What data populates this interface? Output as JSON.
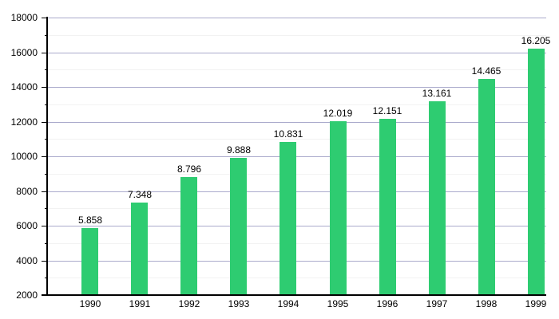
{
  "chart_data": {
    "type": "bar",
    "title": "",
    "xlabel": "",
    "ylabel": "",
    "categories": [
      "1990",
      "1991",
      "1992",
      "1993",
      "1994",
      "1995",
      "1996",
      "1997",
      "1998",
      "1999"
    ],
    "values": [
      5858,
      7348,
      8796,
      9888,
      10831,
      12019,
      12151,
      13161,
      14465,
      16205
    ],
    "value_labels": [
      "5.858",
      "7.348",
      "8.796",
      "9.888",
      "10.831",
      "12.019",
      "12.151",
      "13.161",
      "14.465",
      "16.205"
    ],
    "y_tick_labels": [
      "2000",
      "4000",
      "6000",
      "8000",
      "10000",
      "12000",
      "14000",
      "16000",
      "18000"
    ],
    "ylim": [
      2000,
      18000
    ],
    "y_major_step": 2000,
    "y_minor_step": 1000,
    "grid": "horizontal-major-and-minor",
    "legend": "none",
    "colors": {
      "bar": "#2ECC71",
      "major_gridline": "#AAAACC",
      "minor_gridline": "#F2F2F2",
      "axis": "#000000",
      "text": "#000000"
    }
  }
}
